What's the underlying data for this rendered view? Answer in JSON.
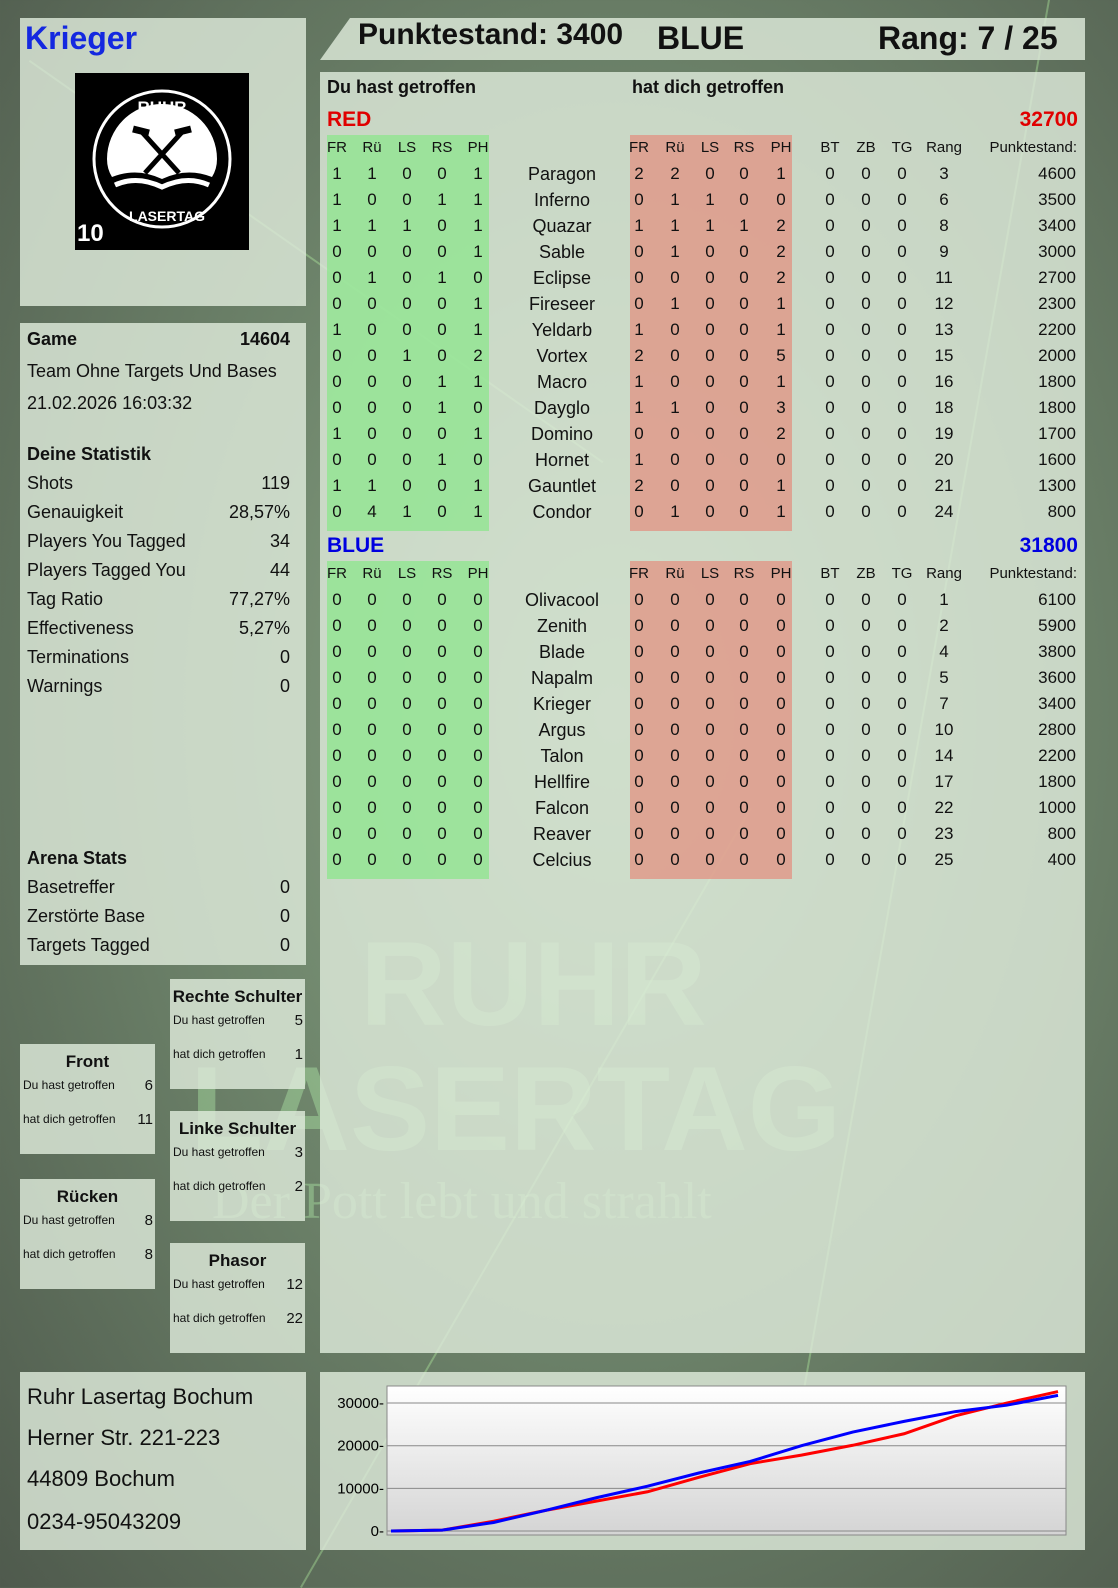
{
  "player": {
    "name": "Krieger",
    "logo_text": [
      "RUHR",
      "LASERTAG",
      "10"
    ]
  },
  "header": {
    "score": "Punktestand: 3400",
    "team": "BLUE",
    "rank": "Rang: 7 / 25"
  },
  "table": {
    "section_hit": "Du hast getroffen",
    "section_hitby": "hat dich getroffen",
    "hit_cols": [
      "FR",
      "Rü",
      "LS",
      "RS",
      "PH"
    ],
    "extra_cols": [
      "BT",
      "ZB",
      "TG",
      "Rang",
      "Punktestand:"
    ],
    "teams": [
      {
        "name": "RED",
        "total": "32700",
        "color": "#e00000",
        "rows": [
          [
            "Paragon",
            [
              1,
              1,
              0,
              0,
              1
            ],
            [
              2,
              2,
              0,
              0,
              1
            ],
            [
              0,
              0,
              0
            ],
            3,
            4600
          ],
          [
            "Inferno",
            [
              1,
              0,
              0,
              1,
              1
            ],
            [
              0,
              1,
              1,
              0,
              0
            ],
            [
              0,
              0,
              0
            ],
            6,
            3500
          ],
          [
            "Quazar",
            [
              1,
              1,
              1,
              0,
              1
            ],
            [
              1,
              1,
              1,
              1,
              2
            ],
            [
              0,
              0,
              0
            ],
            8,
            3400
          ],
          [
            "Sable",
            [
              0,
              0,
              0,
              0,
              1
            ],
            [
              0,
              1,
              0,
              0,
              2
            ],
            [
              0,
              0,
              0
            ],
            9,
            3000
          ],
          [
            "Eclipse",
            [
              0,
              1,
              0,
              1,
              0
            ],
            [
              0,
              0,
              0,
              0,
              2
            ],
            [
              0,
              0,
              0
            ],
            11,
            2700
          ],
          [
            "Fireseer",
            [
              0,
              0,
              0,
              0,
              1
            ],
            [
              0,
              1,
              0,
              0,
              1
            ],
            [
              0,
              0,
              0
            ],
            12,
            2300
          ],
          [
            "Yeldarb",
            [
              1,
              0,
              0,
              0,
              1
            ],
            [
              1,
              0,
              0,
              0,
              1
            ],
            [
              0,
              0,
              0
            ],
            13,
            2200
          ],
          [
            "Vortex",
            [
              0,
              0,
              1,
              0,
              2
            ],
            [
              2,
              0,
              0,
              0,
              5
            ],
            [
              0,
              0,
              0
            ],
            15,
            2000
          ],
          [
            "Macro",
            [
              0,
              0,
              0,
              1,
              1
            ],
            [
              1,
              0,
              0,
              0,
              1
            ],
            [
              0,
              0,
              0
            ],
            16,
            1800
          ],
          [
            "Dayglo",
            [
              0,
              0,
              0,
              1,
              0
            ],
            [
              1,
              1,
              0,
              0,
              3
            ],
            [
              0,
              0,
              0
            ],
            18,
            1800
          ],
          [
            "Domino",
            [
              1,
              0,
              0,
              0,
              1
            ],
            [
              0,
              0,
              0,
              0,
              2
            ],
            [
              0,
              0,
              0
            ],
            19,
            1700
          ],
          [
            "Hornet",
            [
              0,
              0,
              0,
              1,
              0
            ],
            [
              1,
              0,
              0,
              0,
              0
            ],
            [
              0,
              0,
              0
            ],
            20,
            1600
          ],
          [
            "Gauntlet",
            [
              1,
              1,
              0,
              0,
              1
            ],
            [
              2,
              0,
              0,
              0,
              1
            ],
            [
              0,
              0,
              0
            ],
            21,
            1300
          ],
          [
            "Condor",
            [
              0,
              4,
              1,
              0,
              1
            ],
            [
              0,
              1,
              0,
              0,
              1
            ],
            [
              0,
              0,
              0
            ],
            24,
            800
          ]
        ]
      },
      {
        "name": "BLUE",
        "total": "31800",
        "color": "#0000e0",
        "rows": [
          [
            "Olivacool",
            [
              0,
              0,
              0,
              0,
              0
            ],
            [
              0,
              0,
              0,
              0,
              0
            ],
            [
              0,
              0,
              0
            ],
            1,
            6100
          ],
          [
            "Zenith",
            [
              0,
              0,
              0,
              0,
              0
            ],
            [
              0,
              0,
              0,
              0,
              0
            ],
            [
              0,
              0,
              0
            ],
            2,
            5900
          ],
          [
            "Blade",
            [
              0,
              0,
              0,
              0,
              0
            ],
            [
              0,
              0,
              0,
              0,
              0
            ],
            [
              0,
              0,
              0
            ],
            4,
            3800
          ],
          [
            "Napalm",
            [
              0,
              0,
              0,
              0,
              0
            ],
            [
              0,
              0,
              0,
              0,
              0
            ],
            [
              0,
              0,
              0
            ],
            5,
            3600
          ],
          [
            "Krieger",
            [
              0,
              0,
              0,
              0,
              0
            ],
            [
              0,
              0,
              0,
              0,
              0
            ],
            [
              0,
              0,
              0
            ],
            7,
            3400
          ],
          [
            "Argus",
            [
              0,
              0,
              0,
              0,
              0
            ],
            [
              0,
              0,
              0,
              0,
              0
            ],
            [
              0,
              0,
              0
            ],
            10,
            2800
          ],
          [
            "Talon",
            [
              0,
              0,
              0,
              0,
              0
            ],
            [
              0,
              0,
              0,
              0,
              0
            ],
            [
              0,
              0,
              0
            ],
            14,
            2200
          ],
          [
            "Hellfire",
            [
              0,
              0,
              0,
              0,
              0
            ],
            [
              0,
              0,
              0,
              0,
              0
            ],
            [
              0,
              0,
              0
            ],
            17,
            1800
          ],
          [
            "Falcon",
            [
              0,
              0,
              0,
              0,
              0
            ],
            [
              0,
              0,
              0,
              0,
              0
            ],
            [
              0,
              0,
              0
            ],
            22,
            1000
          ],
          [
            "Reaver",
            [
              0,
              0,
              0,
              0,
              0
            ],
            [
              0,
              0,
              0,
              0,
              0
            ],
            [
              0,
              0,
              0
            ],
            23,
            800
          ],
          [
            "Celcius",
            [
              0,
              0,
              0,
              0,
              0
            ],
            [
              0,
              0,
              0,
              0,
              0
            ],
            [
              0,
              0,
              0
            ],
            25,
            400
          ]
        ]
      }
    ]
  },
  "game": {
    "label": "Game",
    "id": "14604",
    "mode": "Team Ohne Targets Und Bases",
    "datetime": "21.02.2026 16:03:32"
  },
  "stats": {
    "title": "Deine Statistik",
    "items": [
      {
        "label": "Shots",
        "value": "119"
      },
      {
        "label": "Genauigkeit",
        "value": "28,57%"
      },
      {
        "label": "Players You Tagged",
        "value": "34"
      },
      {
        "label": "Players Tagged You",
        "value": "44"
      },
      {
        "label": "Tag Ratio",
        "value": "77,27%"
      },
      {
        "label": "Effectiveness",
        "value": "5,27%"
      },
      {
        "label": "Terminations",
        "value": "0"
      },
      {
        "label": "Warnings",
        "value": "0"
      }
    ]
  },
  "arena": {
    "title": "Arena Stats",
    "items": [
      {
        "label": "Basetreffer",
        "value": "0"
      },
      {
        "label": "Zerstörte Base",
        "value": "0"
      },
      {
        "label": "Targets Tagged",
        "value": "0"
      }
    ]
  },
  "zones": [
    {
      "name": "Rechte Schulter",
      "hit_label": "Du hast getroffen",
      "hit": "5",
      "hitby_label": "hat dich getroffen",
      "hitby": "1"
    },
    {
      "name": "Front",
      "hit_label": "Du hast getroffen",
      "hit": "6",
      "hitby_label": "hat dich getroffen",
      "hitby": "11"
    },
    {
      "name": "Linke Schulter",
      "hit_label": "Du hast getroffen",
      "hit": "3",
      "hitby_label": "hat dich getroffen",
      "hitby": "2"
    },
    {
      "name": "Rücken",
      "hit_label": "Du hast getroffen",
      "hit": "8",
      "hitby_label": "hat dich getroffen",
      "hitby": "8"
    },
    {
      "name": "Phasor",
      "hit_label": "Du hast getroffen",
      "hit": "12",
      "hitby_label": "hat dich getroffen",
      "hitby": "22"
    }
  ],
  "address": [
    "Ruhr Lasertag Bochum",
    "Herner Str. 221-223",
    "44809 Bochum",
    "0234-95043209"
  ],
  "watermark": {
    "line1": "RUHR",
    "line2": "LASERTAG",
    "tagline": "Der Pott lebt und strahlt"
  },
  "chart_data": {
    "type": "line",
    "ylim": [
      0,
      34000
    ],
    "yticks": [
      "0",
      "10000",
      "20000",
      "30000"
    ],
    "grid": true,
    "x": [
      0,
      1,
      2,
      3,
      4,
      5,
      6,
      7,
      8,
      9,
      10,
      11,
      12,
      13
    ],
    "series": [
      {
        "color": "#ff0000",
        "values": [
          0,
          200,
          2300,
          4800,
          7000,
          9200,
          12600,
          15800,
          17800,
          20100,
          22800,
          27000,
          30000,
          32700
        ]
      },
      {
        "color": "#0000ff",
        "values": [
          0,
          200,
          2000,
          4800,
          7800,
          10500,
          13600,
          16300,
          20000,
          23200,
          25700,
          28000,
          29500,
          31800
        ]
      }
    ]
  }
}
